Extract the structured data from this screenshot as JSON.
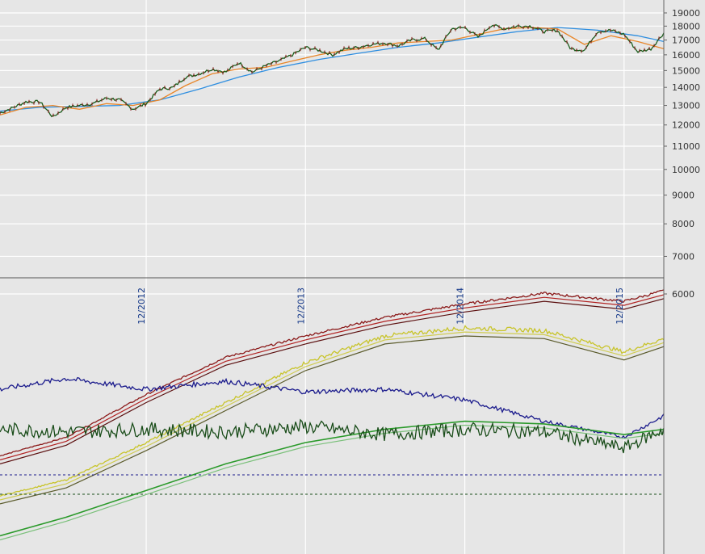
{
  "chart_data": {
    "type": "line",
    "title": "",
    "price_axis": {
      "scale": "log",
      "ylim": [
        6000,
        19000
      ],
      "tick_labels": [
        "19000",
        "18000",
        "17000",
        "16000",
        "15000",
        "14000",
        "13000",
        "12000",
        "11000",
        "10000",
        "9000",
        "8000",
        "7000",
        "6000"
      ],
      "tick_values": [
        19000,
        18000,
        17000,
        16000,
        15000,
        14000,
        13000,
        12000,
        11000,
        10000,
        9000,
        8000,
        7000,
        6000
      ],
      "label_side": "right"
    },
    "x_axis": {
      "type": "date",
      "range": [
        "2012-01",
        "2016-03"
      ],
      "tick_labels": [
        "12/2012",
        "12/2013",
        "12/2014",
        "12/2015"
      ],
      "tick_dates": [
        "2012-12",
        "2013-12",
        "2014-12",
        "2015-12"
      ],
      "label_orientation": "vertical"
    },
    "grid": true,
    "legend": "none",
    "colors": {
      "background": "#e6e6e6",
      "grid": "#ffffff",
      "price": "#1a5c1a",
      "price_down": "#8b1a1a",
      "ma_fast": "#e8862a",
      "ma_slow": "#2e8ee0",
      "ma_medium_dark": "#8b4513",
      "breadth_main": "#8b1a1a",
      "breadth_ma": "#b22222",
      "breadth_ma2": "#5c1010",
      "yellow_main": "#c8c42a",
      "yellow_ma": "#d0cc50",
      "yellow_ma2": "#5a5a2a",
      "navy": "#1a1a8c",
      "osc": "#1a4d1a",
      "osc_ma": "#2a9a2a",
      "osc_ma2": "#7ac07a",
      "ref_line_upper": "#1a1a8c",
      "ref_line_lower": "#1a4d1a"
    },
    "series": [
      {
        "id": "price",
        "panel": "price",
        "x": [
          "2012-01",
          "2012-02",
          "2012-03",
          "2012-04",
          "2012-05",
          "2012-06",
          "2012-07",
          "2012-08",
          "2012-09",
          "2012-10",
          "2012-11",
          "2012-12",
          "2013-01",
          "2013-02",
          "2013-03",
          "2013-04",
          "2013-05",
          "2013-06",
          "2013-07",
          "2013-08",
          "2013-09",
          "2013-10",
          "2013-11",
          "2013-12",
          "2014-01",
          "2014-02",
          "2014-03",
          "2014-04",
          "2014-05",
          "2014-06",
          "2014-07",
          "2014-08",
          "2014-09",
          "2014-10",
          "2014-11",
          "2014-12",
          "2015-01",
          "2015-02",
          "2015-03",
          "2015-04",
          "2015-05",
          "2015-06",
          "2015-07",
          "2015-08",
          "2015-09",
          "2015-10",
          "2015-11",
          "2015-12",
          "2016-01",
          "2016-02",
          "2016-03"
        ],
        "y": [
          12600,
          12900,
          13200,
          13200,
          12400,
          12900,
          13000,
          13100,
          13400,
          13300,
          12800,
          13100,
          13900,
          14000,
          14600,
          14800,
          15100,
          14900,
          15500,
          14900,
          15300,
          15600,
          16000,
          16500,
          16300,
          16000,
          16400,
          16500,
          16700,
          16800,
          16600,
          17000,
          17100,
          16300,
          17800,
          17900,
          17200,
          18100,
          17800,
          18000,
          18000,
          17600,
          17700,
          16400,
          16300,
          17600,
          17700,
          17400,
          16200,
          16400,
          17500
        ]
      },
      {
        "id": "ma_fast",
        "panel": "price",
        "x": [
          "2012-01",
          "2012-03",
          "2012-05",
          "2012-07",
          "2012-09",
          "2012-11",
          "2013-01",
          "2013-03",
          "2013-05",
          "2013-07",
          "2013-09",
          "2013-11",
          "2014-01",
          "2014-03",
          "2014-05",
          "2014-07",
          "2014-09",
          "2014-11",
          "2015-01",
          "2015-03",
          "2015-05",
          "2015-07",
          "2015-09",
          "2015-11",
          "2016-01",
          "2016-03"
        ],
        "y": [
          12500,
          12900,
          13000,
          12800,
          13100,
          13000,
          13300,
          14100,
          14800,
          15100,
          15200,
          15600,
          16000,
          16300,
          16500,
          16800,
          16900,
          17000,
          17400,
          17800,
          17900,
          17800,
          16700,
          17300,
          16900,
          16400
        ]
      },
      {
        "id": "ma_slow",
        "panel": "price",
        "x": [
          "2012-01",
          "2012-04",
          "2012-07",
          "2012-10",
          "2013-01",
          "2013-04",
          "2013-07",
          "2013-10",
          "2014-01",
          "2014-04",
          "2014-07",
          "2014-10",
          "2015-01",
          "2015-04",
          "2015-07",
          "2015-10",
          "2016-01",
          "2016-03"
        ],
        "y": [
          12700,
          12900,
          12950,
          13000,
          13300,
          13900,
          14600,
          15200,
          15700,
          16100,
          16500,
          16800,
          17200,
          17600,
          17900,
          17700,
          17300,
          16900
        ]
      },
      {
        "id": "breadth_main",
        "panel": "lower",
        "x": [
          "2012-01",
          "2012-06",
          "2012-12",
          "2013-06",
          "2013-12",
          "2014-06",
          "2014-12",
          "2015-06",
          "2015-12",
          "2016-03"
        ],
        "y": [
          0.35,
          0.42,
          0.58,
          0.72,
          0.8,
          0.87,
          0.92,
          0.96,
          0.93,
          0.97
        ]
      },
      {
        "id": "yellow_main",
        "panel": "lower",
        "x": [
          "2012-01",
          "2012-06",
          "2012-12",
          "2013-06",
          "2013-12",
          "2014-06",
          "2014-12",
          "2015-06",
          "2015-12",
          "2016-03"
        ],
        "y": [
          0.2,
          0.26,
          0.4,
          0.55,
          0.7,
          0.8,
          0.83,
          0.82,
          0.74,
          0.79
        ]
      },
      {
        "id": "navy",
        "panel": "lower",
        "x": [
          "2012-01",
          "2012-06",
          "2012-12",
          "2013-06",
          "2013-12",
          "2014-06",
          "2014-12",
          "2015-06",
          "2015-12",
          "2016-03"
        ],
        "y": [
          0.6,
          0.64,
          0.6,
          0.63,
          0.59,
          0.6,
          0.56,
          0.48,
          0.42,
          0.5
        ]
      },
      {
        "id": "osc",
        "panel": "lower",
        "x": [
          "2012-01",
          "2012-06",
          "2012-12",
          "2013-06",
          "2013-12",
          "2014-06",
          "2014-12",
          "2015-06",
          "2015-12",
          "2016-03"
        ],
        "y": [
          0.45,
          0.44,
          0.45,
          0.44,
          0.46,
          0.43,
          0.45,
          0.44,
          0.38,
          0.45
        ]
      },
      {
        "id": "osc_ma",
        "panel": "lower",
        "x": [
          "2012-01",
          "2012-06",
          "2012-12",
          "2013-06",
          "2013-12",
          "2014-06",
          "2014-12",
          "2015-06",
          "2015-12",
          "2016-03"
        ],
        "y": [
          0.05,
          0.12,
          0.22,
          0.32,
          0.4,
          0.45,
          0.48,
          0.47,
          0.43,
          0.45
        ]
      }
    ],
    "reference_lines": [
      {
        "panel": "lower",
        "style": "dashed",
        "color_key": "ref_line_upper"
      },
      {
        "panel": "lower",
        "style": "dashed",
        "color_key": "ref_line_lower"
      }
    ]
  }
}
